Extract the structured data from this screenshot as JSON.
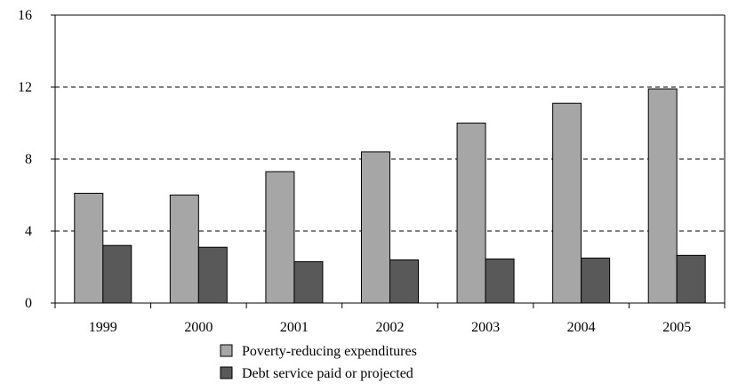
{
  "chart_data": {
    "type": "bar",
    "categories": [
      "1999",
      "2000",
      "2001",
      "2002",
      "2003",
      "2004",
      "2005"
    ],
    "series": [
      {
        "name": "Poverty-reducing expenditures",
        "values": [
          6.1,
          6.0,
          7.3,
          8.4,
          10.0,
          11.1,
          11.9
        ],
        "color": "#a6a6a6"
      },
      {
        "name": "Debt service paid or projected",
        "values": [
          3.2,
          3.1,
          2.3,
          2.4,
          2.45,
          2.5,
          2.65
        ],
        "color": "#595959"
      }
    ],
    "title": "",
    "xlabel": "",
    "ylabel": "",
    "ylim": [
      0,
      16
    ],
    "yticks": [
      "0",
      "4",
      "8",
      "12",
      "16"
    ],
    "grid": "dashed horizontal",
    "legend_placement": "bottom-center"
  }
}
